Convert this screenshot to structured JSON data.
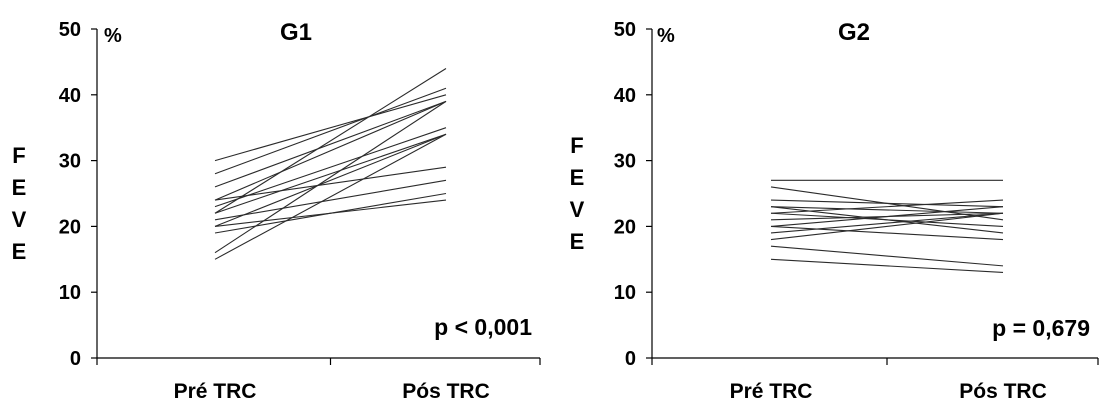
{
  "chart_data": [
    {
      "type": "line",
      "title": "G1",
      "unit": "%",
      "ylabel": "FEVE",
      "categories": [
        "Pré TRC",
        "Pós TRC"
      ],
      "ylim": [
        0,
        50
      ],
      "yticks": [
        0,
        10,
        20,
        30,
        40,
        50
      ],
      "grid": false,
      "annotation": "p < 0,001",
      "series": [
        {
          "values": [
            30,
            40
          ]
        },
        {
          "values": [
            28,
            41
          ]
        },
        {
          "values": [
            26,
            39
          ]
        },
        {
          "values": [
            24,
            29
          ]
        },
        {
          "values": [
            24,
            39
          ]
        },
        {
          "values": [
            23,
            35
          ]
        },
        {
          "values": [
            22,
            34
          ]
        },
        {
          "values": [
            22,
            44
          ]
        },
        {
          "values": [
            21,
            27
          ]
        },
        {
          "values": [
            20,
            34
          ]
        },
        {
          "values": [
            20,
            24
          ]
        },
        {
          "values": [
            19,
            25
          ]
        },
        {
          "values": [
            16,
            39
          ]
        },
        {
          "values": [
            15,
            34
          ]
        }
      ]
    },
    {
      "type": "line",
      "title": "G2",
      "unit": "%",
      "ylabel": "FEVE",
      "categories": [
        "Pré TRC",
        "Pós TRC"
      ],
      "ylim": [
        0,
        50
      ],
      "yticks": [
        0,
        10,
        20,
        30,
        40,
        50
      ],
      "grid": false,
      "annotation": "p = 0,679",
      "series": [
        {
          "values": [
            27,
            27
          ]
        },
        {
          "values": [
            26,
            21
          ]
        },
        {
          "values": [
            24,
            23
          ]
        },
        {
          "values": [
            23,
            22
          ]
        },
        {
          "values": [
            23,
            19
          ]
        },
        {
          "values": [
            22,
            24
          ]
        },
        {
          "values": [
            22,
            20
          ]
        },
        {
          "values": [
            21,
            22
          ]
        },
        {
          "values": [
            20,
            18
          ]
        },
        {
          "values": [
            20,
            23
          ]
        },
        {
          "values": [
            19,
            22
          ]
        },
        {
          "values": [
            18,
            22
          ]
        },
        {
          "values": [
            17,
            14
          ]
        },
        {
          "values": [
            15,
            13
          ]
        }
      ]
    }
  ]
}
